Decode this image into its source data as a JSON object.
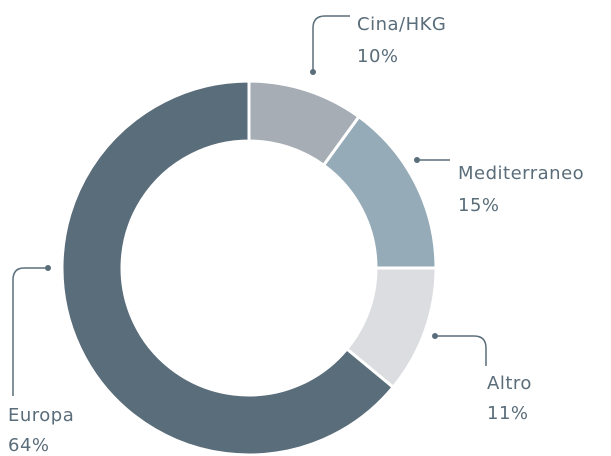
{
  "chart_data": {
    "type": "donut",
    "categories": [
      "Cina/HKG",
      "Mediterraneo",
      "Altro",
      "Europa"
    ],
    "values": [
      10,
      15,
      11,
      64
    ],
    "value_labels": [
      "10%",
      "15%",
      "11%",
      "64%"
    ],
    "colors": [
      "#a7adb5",
      "#95abb8",
      "#dcdde0",
      "#5a6d7a"
    ]
  }
}
